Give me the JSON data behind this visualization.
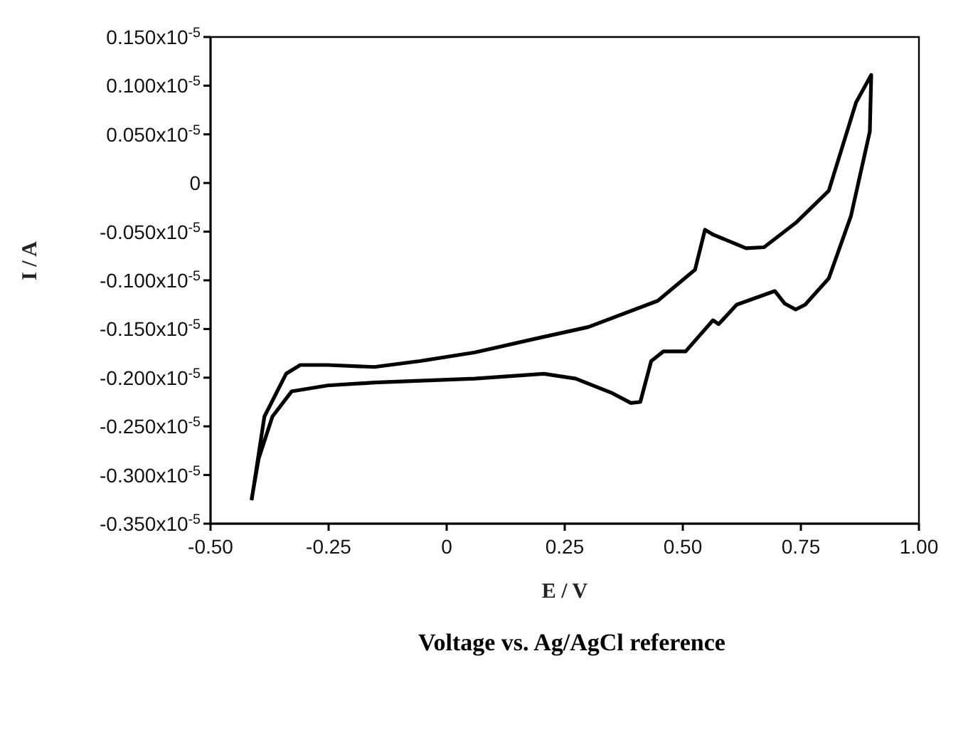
{
  "chart_data": {
    "type": "line",
    "xlabel": "E / V",
    "ylabel": "I / A",
    "annotations": [
      "Voltage vs. Ag/AgCl reference"
    ],
    "series": [
      {
        "color": "#000000",
        "x": [
          -0.413,
          -0.386,
          -0.34,
          -0.31,
          -0.252,
          -0.153,
          -0.057,
          0.06,
          0.206,
          0.3,
          0.447,
          0.526,
          0.547,
          0.564,
          0.634,
          0.672,
          0.739,
          0.809,
          0.867,
          0.899,
          0.896,
          0.856,
          0.809,
          0.759,
          0.739,
          0.716,
          0.695,
          0.614,
          0.576,
          0.564,
          0.506,
          0.459,
          0.433,
          0.41,
          0.39,
          0.351,
          0.273,
          0.206,
          0.06,
          -0.153,
          -0.252,
          -0.328,
          -0.369,
          -0.398,
          -0.413
        ],
        "values": [
          -3.26e-06,
          -2.4e-06,
          -1.96e-06,
          -1.87e-06,
          -1.87e-06,
          -1.89e-06,
          -1.83e-06,
          -1.74e-06,
          -1.58e-06,
          -1.48e-06,
          -1.21e-06,
          -8.9e-07,
          -4.8e-07,
          -5.3e-07,
          -6.7e-07,
          -6.6e-07,
          -4.1e-07,
          -8e-08,
          8.3e-07,
          1.11e-06,
          5.3e-07,
          -3.4e-07,
          -9.8e-07,
          -1.25e-06,
          -1.3e-06,
          -1.24e-06,
          -1.11e-06,
          -1.25e-06,
          -1.45e-06,
          -1.41e-06,
          -1.73e-06,
          -1.73e-06,
          -1.83e-06,
          -2.25e-06,
          -2.26e-06,
          -2.16e-06,
          -2.01e-06,
          -1.96e-06,
          -2.01e-06,
          -2.05e-06,
          -2.08e-06,
          -2.14e-06,
          -2.4e-06,
          -2.83e-06,
          -3.25e-06
        ]
      }
    ],
    "xlim": [
      -0.5,
      1.0
    ],
    "xticks": [
      {
        "value": -0.5,
        "label": "-0.50"
      },
      -0.25,
      0,
      0.25,
      {
        "value": 0.5,
        "label": "0.50"
      },
      0.75,
      {
        "value": 1.0,
        "label": "1.00"
      }
    ],
    "ylim": [
      -3.5e-06,
      1.5e-06
    ],
    "yticks": [
      {
        "value": 1.5e-06,
        "label": "0.150x10$^{-5}$"
      },
      {
        "value": 1e-06,
        "label": "0.100x10$^{-5}$"
      },
      {
        "value": 5e-07,
        "label": "0.050x10$^{-5}$"
      },
      0,
      {
        "value": -5e-07,
        "label": "-0.050x10$^{-5}$"
      },
      {
        "value": -1e-06,
        "label": "-0.100x10$^{-5}$"
      },
      {
        "value": -1.5e-06,
        "label": "-0.150x10$^{-5}$"
      },
      {
        "value": -2e-06,
        "label": "-0.200x10$^{-5}$"
      },
      {
        "value": -2.5e-06,
        "label": "-0.250x10$^{-5}$"
      },
      {
        "value": -3e-06,
        "label": "-0.300x10$^{-5}$"
      },
      {
        "value": -3.5e-06,
        "label": "-0.350x10$^{-5}$"
      }
    ],
    "grid": false,
    "marker": "none",
    "line_style": "solid"
  }
}
